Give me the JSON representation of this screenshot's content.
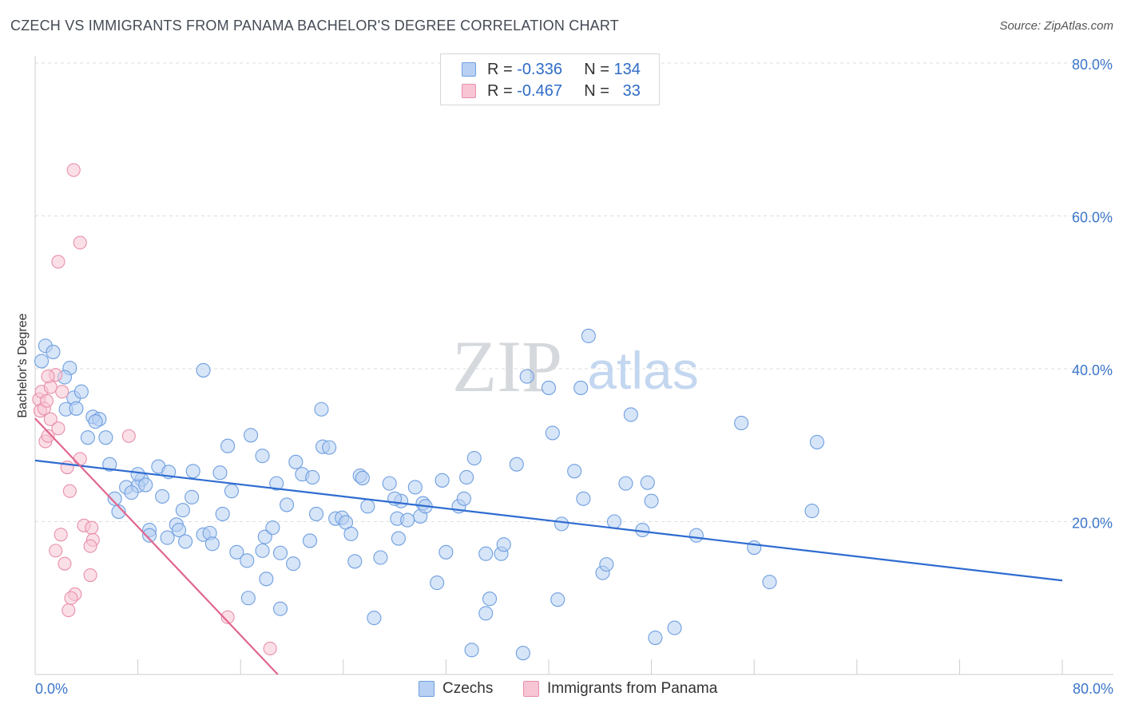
{
  "title": "CZECH VS IMMIGRANTS FROM PANAMA BACHELOR'S DEGREE CORRELATION CHART",
  "source": "Source: ZipAtlas.com",
  "watermark": {
    "zip": "ZIP",
    "atlas": "atlas"
  },
  "legend": {
    "rows": [
      {
        "r_label": "R =",
        "r_value": "-0.336",
        "n_label": "N =",
        "n_value": "134"
      },
      {
        "r_label": "R =",
        "r_value": "-0.467",
        "n_label": "N =",
        "n_value": "33"
      }
    ]
  },
  "bottom_legend": [
    "Czechs",
    "Immigrants from Panama"
  ],
  "chart_data": {
    "type": "scatter",
    "title": "CZECH VS IMMIGRANTS FROM PANAMA BACHELOR'S DEGREE CORRELATION CHART",
    "xlabel": "",
    "ylabel": "Bachelor's Degree",
    "xlim": [
      0,
      80
    ],
    "ylim": [
      0,
      80
    ],
    "x_tick_labels": [
      "0.0%",
      "80.0%"
    ],
    "y_tick_labels": [
      "20.0%",
      "40.0%",
      "60.0%",
      "80.0%"
    ],
    "y_ticks": [
      20,
      40,
      60,
      80
    ],
    "grid": "horizontal-dashed",
    "legend_position": "top-center",
    "colors": {
      "czechs": "#6f9fe0",
      "czechs_line": "#2f6cd0",
      "panama": "#e88fab",
      "panama_line": "#e0668f",
      "axis_text": "#3b76c9"
    },
    "series": [
      {
        "name": "Czechs",
        "r": -0.336,
        "n": 134,
        "trend": {
          "x": [
            0,
            80
          ],
          "y": [
            28.0,
            12.3
          ]
        },
        "points": [
          [
            0.5,
            41.0
          ],
          [
            0.8,
            43.0
          ],
          [
            1.4,
            42.2
          ],
          [
            2.7,
            40.1
          ],
          [
            2.3,
            38.9
          ],
          [
            3.0,
            36.2
          ],
          [
            3.6,
            37.0
          ],
          [
            4.5,
            33.7
          ],
          [
            2.4,
            34.7
          ],
          [
            3.2,
            34.8
          ],
          [
            5.0,
            33.4
          ],
          [
            4.7,
            33.1
          ],
          [
            4.1,
            31.0
          ],
          [
            5.5,
            31.0
          ],
          [
            5.8,
            27.5
          ],
          [
            7.1,
            24.5
          ],
          [
            8.3,
            25.5
          ],
          [
            8.0,
            24.7
          ],
          [
            8.6,
            24.8
          ],
          [
            6.2,
            23.0
          ],
          [
            9.6,
            27.2
          ],
          [
            7.5,
            23.8
          ],
          [
            10.4,
            26.5
          ],
          [
            8.0,
            26.2
          ],
          [
            9.9,
            23.3
          ],
          [
            6.5,
            21.3
          ],
          [
            12.3,
            26.6
          ],
          [
            11.5,
            21.5
          ],
          [
            12.2,
            23.2
          ],
          [
            11.0,
            19.6
          ],
          [
            8.9,
            18.9
          ],
          [
            8.9,
            18.2
          ],
          [
            10.3,
            17.9
          ],
          [
            11.2,
            18.9
          ],
          [
            11.7,
            17.4
          ],
          [
            13.1,
            18.3
          ],
          [
            13.6,
            18.5
          ],
          [
            13.8,
            17.1
          ],
          [
            14.4,
            26.4
          ],
          [
            14.6,
            21.0
          ],
          [
            15.3,
            24.0
          ],
          [
            13.1,
            39.8
          ],
          [
            15.0,
            29.9
          ],
          [
            16.8,
            31.3
          ],
          [
            17.7,
            28.6
          ],
          [
            17.7,
            16.2
          ],
          [
            15.7,
            16.0
          ],
          [
            17.9,
            18.0
          ],
          [
            16.5,
            14.9
          ],
          [
            18.5,
            19.2
          ],
          [
            18.8,
            25.0
          ],
          [
            19.1,
            15.9
          ],
          [
            18.0,
            12.5
          ],
          [
            16.6,
            10.0
          ],
          [
            19.1,
            8.6
          ],
          [
            19.6,
            22.2
          ],
          [
            20.3,
            27.8
          ],
          [
            20.8,
            26.2
          ],
          [
            21.6,
            25.8
          ],
          [
            21.4,
            17.5
          ],
          [
            20.1,
            14.5
          ],
          [
            21.9,
            21.0
          ],
          [
            22.3,
            34.7
          ],
          [
            22.4,
            29.8
          ],
          [
            22.9,
            29.7
          ],
          [
            23.4,
            20.4
          ],
          [
            23.9,
            20.5
          ],
          [
            24.2,
            19.9
          ],
          [
            24.6,
            18.4
          ],
          [
            24.9,
            14.8
          ],
          [
            25.3,
            26.0
          ],
          [
            25.5,
            25.7
          ],
          [
            25.9,
            22.0
          ],
          [
            26.9,
            15.3
          ],
          [
            27.6,
            25.0
          ],
          [
            28.5,
            22.7
          ],
          [
            28.2,
            20.4
          ],
          [
            28.3,
            17.8
          ],
          [
            29.0,
            20.2
          ],
          [
            29.6,
            24.5
          ],
          [
            30.2,
            22.4
          ],
          [
            30.0,
            20.7
          ],
          [
            30.4,
            22.0
          ],
          [
            31.7,
            25.4
          ],
          [
            32.0,
            16.0
          ],
          [
            31.3,
            12.0
          ],
          [
            33.0,
            22.0
          ],
          [
            33.4,
            23.0
          ],
          [
            33.6,
            25.8
          ],
          [
            34.2,
            28.3
          ],
          [
            35.1,
            15.8
          ],
          [
            36.3,
            15.8
          ],
          [
            37.5,
            27.5
          ],
          [
            35.4,
            9.9
          ],
          [
            35.1,
            8.0
          ],
          [
            36.5,
            17.0
          ],
          [
            38.3,
            39.0
          ],
          [
            40.3,
            31.6
          ],
          [
            40.7,
            9.8
          ],
          [
            41.0,
            19.7
          ],
          [
            42.0,
            26.6
          ],
          [
            42.5,
            37.5
          ],
          [
            42.7,
            23.0
          ],
          [
            43.1,
            44.3
          ],
          [
            44.2,
            13.3
          ],
          [
            44.5,
            14.4
          ],
          [
            45.1,
            20.0
          ],
          [
            46.0,
            25.0
          ],
          [
            46.4,
            34.0
          ],
          [
            47.3,
            18.9
          ],
          [
            47.7,
            25.1
          ],
          [
            48.0,
            22.7
          ],
          [
            49.8,
            6.1
          ],
          [
            51.5,
            18.2
          ],
          [
            55.0,
            32.9
          ],
          [
            56.0,
            16.6
          ],
          [
            57.2,
            12.1
          ],
          [
            60.5,
            21.4
          ],
          [
            60.9,
            30.4
          ],
          [
            26.4,
            7.4
          ],
          [
            34.0,
            3.2
          ],
          [
            38.0,
            2.8
          ],
          [
            48.3,
            4.8
          ],
          [
            40.0,
            37.5
          ],
          [
            28.0,
            23.0
          ]
        ]
      },
      {
        "name": "Immigrants from Panama",
        "r": -0.467,
        "n": 33,
        "trend": {
          "x": [
            0,
            18.9
          ],
          "y": [
            33.5,
            0
          ]
        },
        "points": [
          [
            0.3,
            36.0
          ],
          [
            0.5,
            37.0
          ],
          [
            0.4,
            34.5
          ],
          [
            0.7,
            34.8
          ],
          [
            1.2,
            37.6
          ],
          [
            1.6,
            39.2
          ],
          [
            1.2,
            33.4
          ],
          [
            2.1,
            37.0
          ],
          [
            1.8,
            32.2
          ],
          [
            0.8,
            30.5
          ],
          [
            1.0,
            31.2
          ],
          [
            3.0,
            66.0
          ],
          [
            3.5,
            56.5
          ],
          [
            1.8,
            54.0
          ],
          [
            7.3,
            31.2
          ],
          [
            3.5,
            28.2
          ],
          [
            2.5,
            27.1
          ],
          [
            2.7,
            24.0
          ],
          [
            3.8,
            19.5
          ],
          [
            4.4,
            19.2
          ],
          [
            4.5,
            17.6
          ],
          [
            2.0,
            18.3
          ],
          [
            4.3,
            16.8
          ],
          [
            1.6,
            16.2
          ],
          [
            2.3,
            14.5
          ],
          [
            4.3,
            13.0
          ],
          [
            3.1,
            10.5
          ],
          [
            2.8,
            10.0
          ],
          [
            2.6,
            8.4
          ],
          [
            15.0,
            7.5
          ],
          [
            18.3,
            3.4
          ],
          [
            1.0,
            39.0
          ],
          [
            0.9,
            35.8
          ]
        ]
      }
    ]
  }
}
